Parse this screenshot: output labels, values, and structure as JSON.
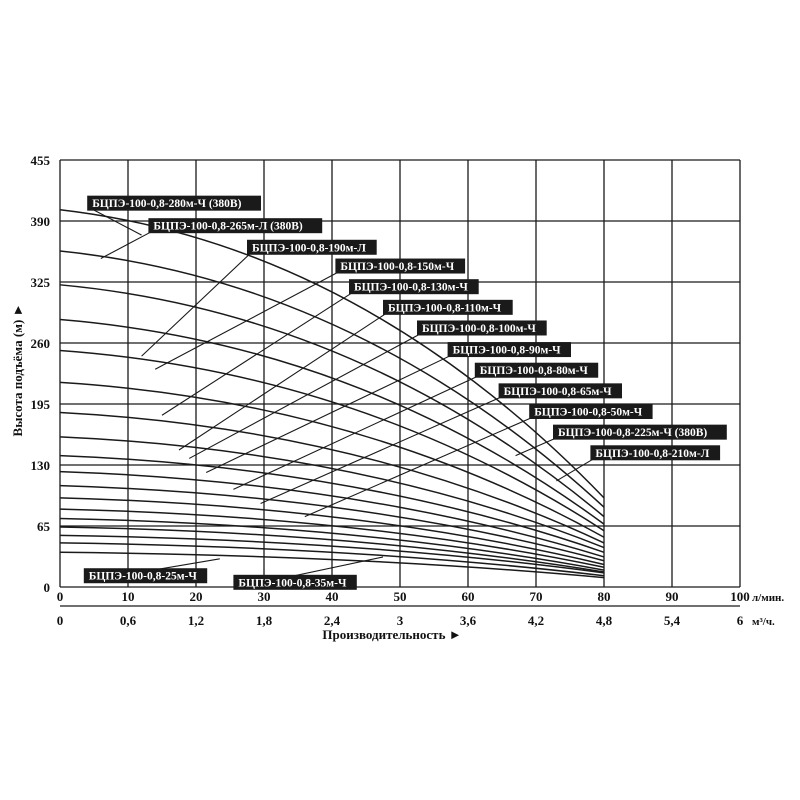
{
  "chart_data": {
    "type": "line",
    "xlabel": "Производительность ►",
    "ylabel": "Высота подъёма (м) ►",
    "x_unit_top": "л/мин.",
    "x_unit_bottom": "м³/ч.",
    "xlim": [
      0,
      100
    ],
    "ylim": [
      0,
      455
    ],
    "x_ticks_top": [
      "0",
      "10",
      "20",
      "30",
      "40",
      "50",
      "60",
      "70",
      "80",
      "90",
      "100"
    ],
    "x_ticks_bottom": [
      "0",
      "0,6",
      "1,2",
      "1,8",
      "2,4",
      "3",
      "3,6",
      "4,2",
      "4,8",
      "5,4",
      "6"
    ],
    "y_ticks": [
      "0",
      "65",
      "130",
      "195",
      "260",
      "325",
      "390",
      "455"
    ],
    "grid": true,
    "series": [
      {
        "name": "БЦПЭ-100-0,8-280м-Ч (380В)",
        "x": [
          0,
          80
        ],
        "y": [
          402,
          95
        ],
        "label_pos": [
          4,
          417
        ],
        "leader_to": [
          12,
          375
        ]
      },
      {
        "name": "БЦПЭ-100-0,8-265м-Л (380В)",
        "x": [
          0,
          80
        ],
        "y": [
          358,
          85
        ],
        "label_pos": [
          13,
          393
        ],
        "leader_to": [
          6,
          350
        ]
      },
      {
        "name": "БЦПЭ-100-0,8-190м-Л",
        "x": [
          0,
          80
        ],
        "y": [
          322,
          75
        ],
        "label_pos": [
          27.5,
          370
        ],
        "leader_to": [
          12,
          246
        ]
      },
      {
        "name": "БЦПЭ-100-0,8-150м-Ч",
        "x": [
          0,
          80
        ],
        "y": [
          285,
          67
        ],
        "label_pos": [
          40.5,
          350
        ],
        "leader_to": [
          14,
          232
        ]
      },
      {
        "name": "БЦПЭ-100-0,8-130м-Ч",
        "x": [
          0,
          80
        ],
        "y": [
          252,
          60
        ],
        "label_pos": [
          42.5,
          328
        ],
        "leader_to": [
          15,
          183
        ]
      },
      {
        "name": "БЦПЭ-100-0,8-110м-Ч",
        "x": [
          0,
          80
        ],
        "y": [
          218,
          53
        ],
        "label_pos": [
          47.5,
          306
        ],
        "leader_to": [
          17.5,
          146
        ]
      },
      {
        "name": "БЦПЭ-100-0,8-100м-Ч",
        "x": [
          0,
          80
        ],
        "y": [
          186,
          47
        ],
        "label_pos": [
          52.5,
          284
        ],
        "leader_to": [
          19,
          137
        ]
      },
      {
        "name": "БЦПЭ-100-0,8-90м-Ч",
        "x": [
          0,
          80
        ],
        "y": [
          160,
          42
        ],
        "label_pos": [
          57,
          261
        ],
        "leader_to": [
          21.5,
          122
        ]
      },
      {
        "name": "БЦПЭ-100-0,8-80м-Ч",
        "x": [
          0,
          80
        ],
        "y": [
          140,
          37
        ],
        "label_pos": [
          61,
          239
        ],
        "leader_to": [
          25.5,
          104
        ]
      },
      {
        "name": "БЦПЭ-100-0,8-65м-Ч",
        "x": [
          0,
          80
        ],
        "y": [
          123,
          32
        ],
        "label_pos": [
          64.5,
          217
        ],
        "leader_to": [
          29.5,
          89
        ]
      },
      {
        "name": "БЦПЭ-100-0,8-50м-Ч",
        "x": [
          0,
          80
        ],
        "y": [
          108,
          28
        ],
        "label_pos": [
          69,
          195
        ],
        "leader_to": [
          36,
          75
        ]
      },
      {
        "name": "БЦПЭ-100-0,8-225м-Ч (380В)",
        "x": [
          0,
          80
        ],
        "y": [
          95,
          24
        ],
        "label_pos": [
          72.5,
          173
        ],
        "leader_to": [
          67,
          140
        ]
      },
      {
        "name": "БЦПЭ-100-0,8-210м-Л",
        "x": [
          0,
          80
        ],
        "y": [
          83,
          21
        ],
        "label_pos": [
          78,
          151
        ],
        "leader_to": [
          73,
          113
        ]
      },
      {
        "name": "БЦПЭ-100-0,8-25м-Ч",
        "x": [
          0,
          80
        ],
        "y": [
          37,
          10
        ],
        "label_pos": [
          3.5,
          20
        ],
        "leader_to": [
          23.5,
          30
        ]
      },
      {
        "name": "БЦПЭ-100-0,8-35м-Ч",
        "x": [
          0,
          80
        ],
        "y": [
          55,
          15
        ],
        "label_pos": [
          25.5,
          13
        ],
        "leader_to": [
          47.5,
          32
        ]
      }
    ],
    "extra_curves_unlabeled": [
      {
        "x": [
          0,
          80
        ],
        "y": [
          73,
          18
        ]
      },
      {
        "x": [
          0,
          80
        ],
        "y": [
          64,
          16
        ]
      },
      {
        "x": [
          0,
          80
        ],
        "y": [
          47,
          12
        ]
      }
    ]
  }
}
